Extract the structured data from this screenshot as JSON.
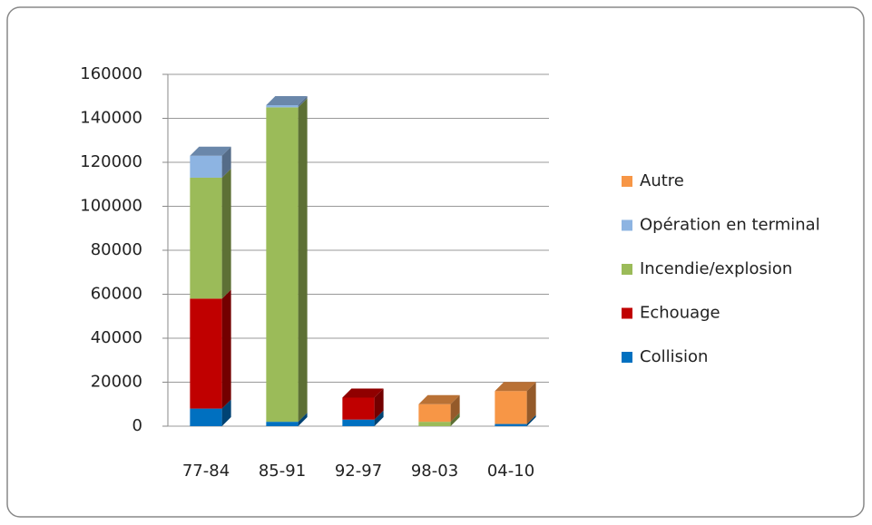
{
  "chart_data": {
    "type": "bar",
    "stacked": true,
    "categories": [
      "77-84",
      "85-91",
      "92-97",
      "98-03",
      "04-10"
    ],
    "series": [
      {
        "name": "Collision",
        "color": "#0070c0",
        "values": [
          8000,
          2000,
          3000,
          0,
          1000
        ]
      },
      {
        "name": "Echouage",
        "color": "#c00000",
        "values": [
          50000,
          0,
          10000,
          0,
          0
        ]
      },
      {
        "name": "Incendie/explosion",
        "color": "#9bbb59",
        "values": [
          55000,
          143000,
          0,
          2000,
          0
        ]
      },
      {
        "name": "Opération en terminal",
        "color": "#8db4e2",
        "values": [
          10000,
          1000,
          0,
          0,
          0
        ]
      },
      {
        "name": "Autre",
        "color": "#f79646",
        "values": [
          0,
          0,
          0,
          8000,
          15000
        ]
      }
    ],
    "ylim": [
      0,
      160000
    ],
    "yticks": [
      0,
      20000,
      40000,
      60000,
      80000,
      100000,
      120000,
      140000,
      160000
    ],
    "grid": true,
    "legend": "right"
  }
}
